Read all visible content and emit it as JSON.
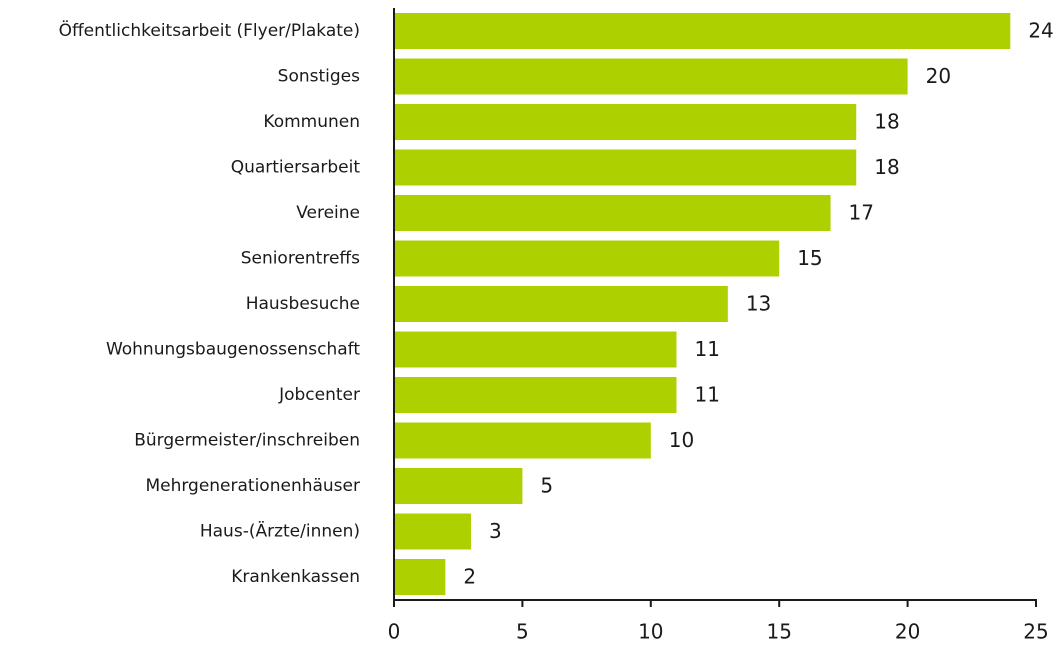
{
  "chart_data": {
    "type": "bar",
    "orientation": "horizontal",
    "categories": [
      "Öffentlichkeitsarbeit (Flyer/Plakate)",
      "Sonstiges",
      "Kommunen",
      "Quartiersarbeit",
      "Vereine",
      "Seniorentreffs",
      "Hausbesuche",
      "Wohnungsbaugenossenschaft",
      "Jobcenter",
      "Bürgermeister/inschreiben",
      "Mehrgenerationenhäuser",
      "Haus-(Ärzte/innen)",
      "Krankenkassen"
    ],
    "values": [
      24,
      20,
      18,
      18,
      17,
      15,
      13,
      11,
      11,
      10,
      5,
      3,
      2
    ],
    "color": "#acd000",
    "xlim": [
      0,
      25
    ],
    "xticks": [
      0,
      5,
      10,
      15,
      20,
      25
    ],
    "grid": false
  }
}
